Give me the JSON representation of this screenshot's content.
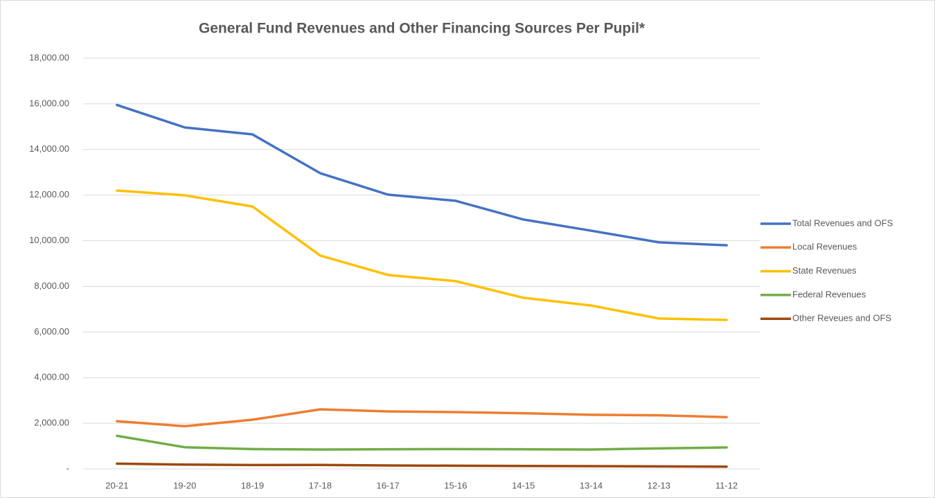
{
  "chart_data": {
    "type": "line",
    "title": "General Fund Revenues and Other Financing Sources Per Pupil*",
    "categories": [
      "20-21",
      "19-20",
      "18-19",
      "17-18",
      "16-17",
      "15-16",
      "14-15",
      "13-14",
      "12-13",
      "11-12"
    ],
    "series": [
      {
        "name": "Total Revenues and OFS",
        "color": "#4472c4",
        "values": [
          15950,
          14965,
          14660,
          12960,
          12020,
          11750,
          10930,
          10440,
          9930,
          9800
        ]
      },
      {
        "name": "Local Revenues",
        "color": "#ed7d31",
        "values": [
          2090,
          1870,
          2155,
          2610,
          2520,
          2490,
          2440,
          2370,
          2350,
          2270
        ]
      },
      {
        "name": "State Revenues",
        "color": "#ffc000",
        "values": [
          12200,
          11990,
          11500,
          9350,
          8500,
          8230,
          7500,
          7160,
          6590,
          6530
        ]
      },
      {
        "name": "Federal Revenues",
        "color": "#70ad47",
        "values": [
          1450,
          950,
          870,
          850,
          860,
          870,
          860,
          850,
          900,
          940
        ]
      },
      {
        "name": "Other Reveues and OFS",
        "color": "#9e480e",
        "values": [
          230,
          190,
          170,
          175,
          150,
          140,
          130,
          120,
          110,
          100
        ]
      }
    ],
    "ylim": [
      0,
      18000
    ],
    "yticks": [
      {
        "value": 0,
        "label": "-"
      },
      {
        "value": 2000,
        "label": "2,000.00"
      },
      {
        "value": 4000,
        "label": "4,000.00"
      },
      {
        "value": 6000,
        "label": "6,000.00"
      },
      {
        "value": 8000,
        "label": "8,000.00"
      },
      {
        "value": 10000,
        "label": "10,000.00"
      },
      {
        "value": 12000,
        "label": "12,000.00"
      },
      {
        "value": 14000,
        "label": "14,000.00"
      },
      {
        "value": 16000,
        "label": "16,000.00"
      },
      {
        "value": 18000,
        "label": "18,000.00"
      }
    ],
    "grid": true,
    "legend": "right"
  }
}
